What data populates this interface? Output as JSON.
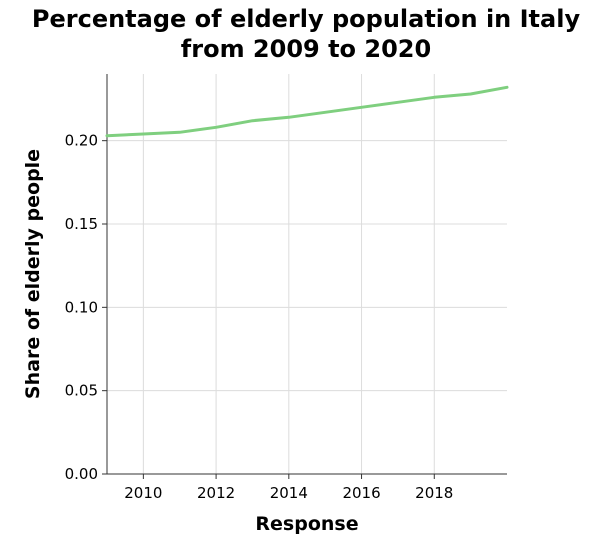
{
  "chart_data": {
    "type": "line",
    "title_line1": "Percentage of elderly population in Italy",
    "title_line2": "from 2009 to 2020",
    "xlabel": "Response",
    "ylabel": "Share of elderly people",
    "xlim": [
      2009,
      2020
    ],
    "ylim": [
      0,
      0.24
    ],
    "xticks": [
      2010,
      2012,
      2014,
      2016,
      2018
    ],
    "xtick_labels": [
      "2010",
      "2012",
      "2014",
      "2016",
      "2018"
    ],
    "yticks": [
      0,
      0.05,
      0.1,
      0.15,
      0.2
    ],
    "ytick_labels": [
      "0.00",
      "0.05",
      "0.10",
      "0.15",
      "0.20"
    ],
    "grid": true,
    "line_color": "#7fcf7f",
    "x": [
      2009,
      2010,
      2011,
      2012,
      2013,
      2014,
      2015,
      2016,
      2017,
      2018,
      2019,
      2020
    ],
    "y": [
      0.203,
      0.204,
      0.205,
      0.208,
      0.212,
      0.214,
      0.217,
      0.22,
      0.223,
      0.226,
      0.228,
      0.232
    ]
  }
}
